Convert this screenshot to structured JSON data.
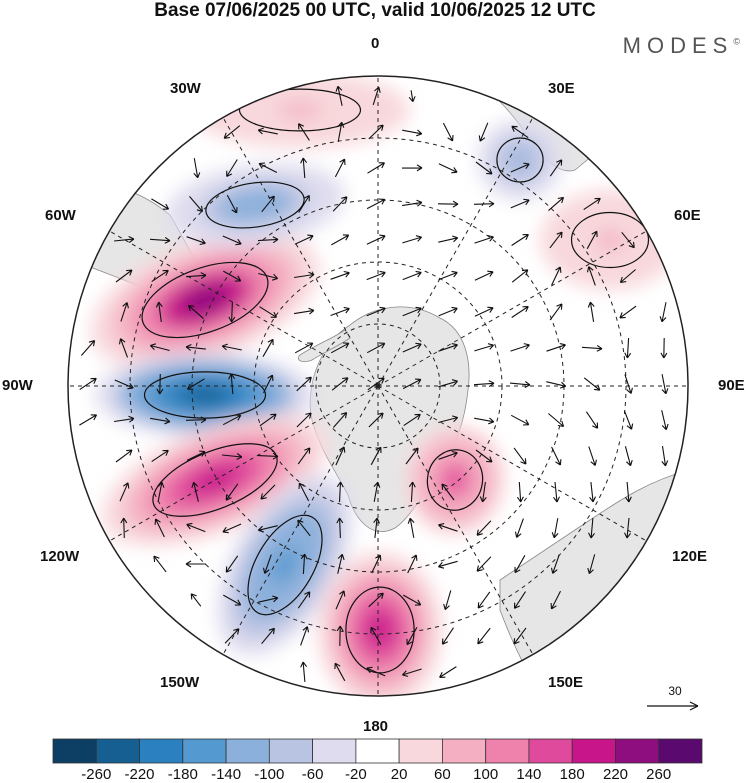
{
  "header": {
    "title": "Base 07/06/2025 00 UTC, valid 10/06/2025 12 UTC",
    "brand": "MODES",
    "brand_mark": "©"
  },
  "map": {
    "projection": "south polar stereographic",
    "longitude_labels": {
      "top": "0",
      "top_right": "30E",
      "right_upper": "60E",
      "right": "90E",
      "right_lower": "120E",
      "bottom_right": "150E",
      "bottom": "180",
      "bottom_left": "150W",
      "left_lower": "120W",
      "left": "90W",
      "left_upper": "60W",
      "top_left": "30W"
    },
    "reference_vector": "30",
    "land_color": "#e6e6e6",
    "anomaly_centers": [
      {
        "name": "drake-passage-high",
        "value": 220
      },
      {
        "name": "amundsen-low",
        "value": -240
      },
      {
        "name": "south-pacific-high",
        "value": 200
      },
      {
        "name": "ross-sea-low",
        "value": -160
      },
      {
        "name": "new-zealand-high",
        "value": 180
      },
      {
        "name": "south-atlantic-low",
        "value": -130
      },
      {
        "name": "south-atlantic-high",
        "value": 60
      },
      {
        "name": "indian-ocean-high",
        "value": 60
      },
      {
        "name": "east-antarctic-low",
        "value": -120
      },
      {
        "name": "wilkes-high",
        "value": 150
      }
    ]
  },
  "colorbar": {
    "ticks": [
      "-260",
      "-220",
      "-180",
      "-140",
      "-100",
      "-60",
      "-20",
      "20",
      "60",
      "100",
      "140",
      "180",
      "220",
      "260"
    ],
    "colors": [
      "#0c3f63",
      "#165f93",
      "#2b80bf",
      "#5499cf",
      "#8cb0dc",
      "#b9c3e2",
      "#dedcee",
      "#ffffff",
      "#f8d8dc",
      "#f4b0c2",
      "#ee82ac",
      "#e04a9c",
      "#c8168a",
      "#8e0d7f",
      "#5a0a6e"
    ]
  }
}
